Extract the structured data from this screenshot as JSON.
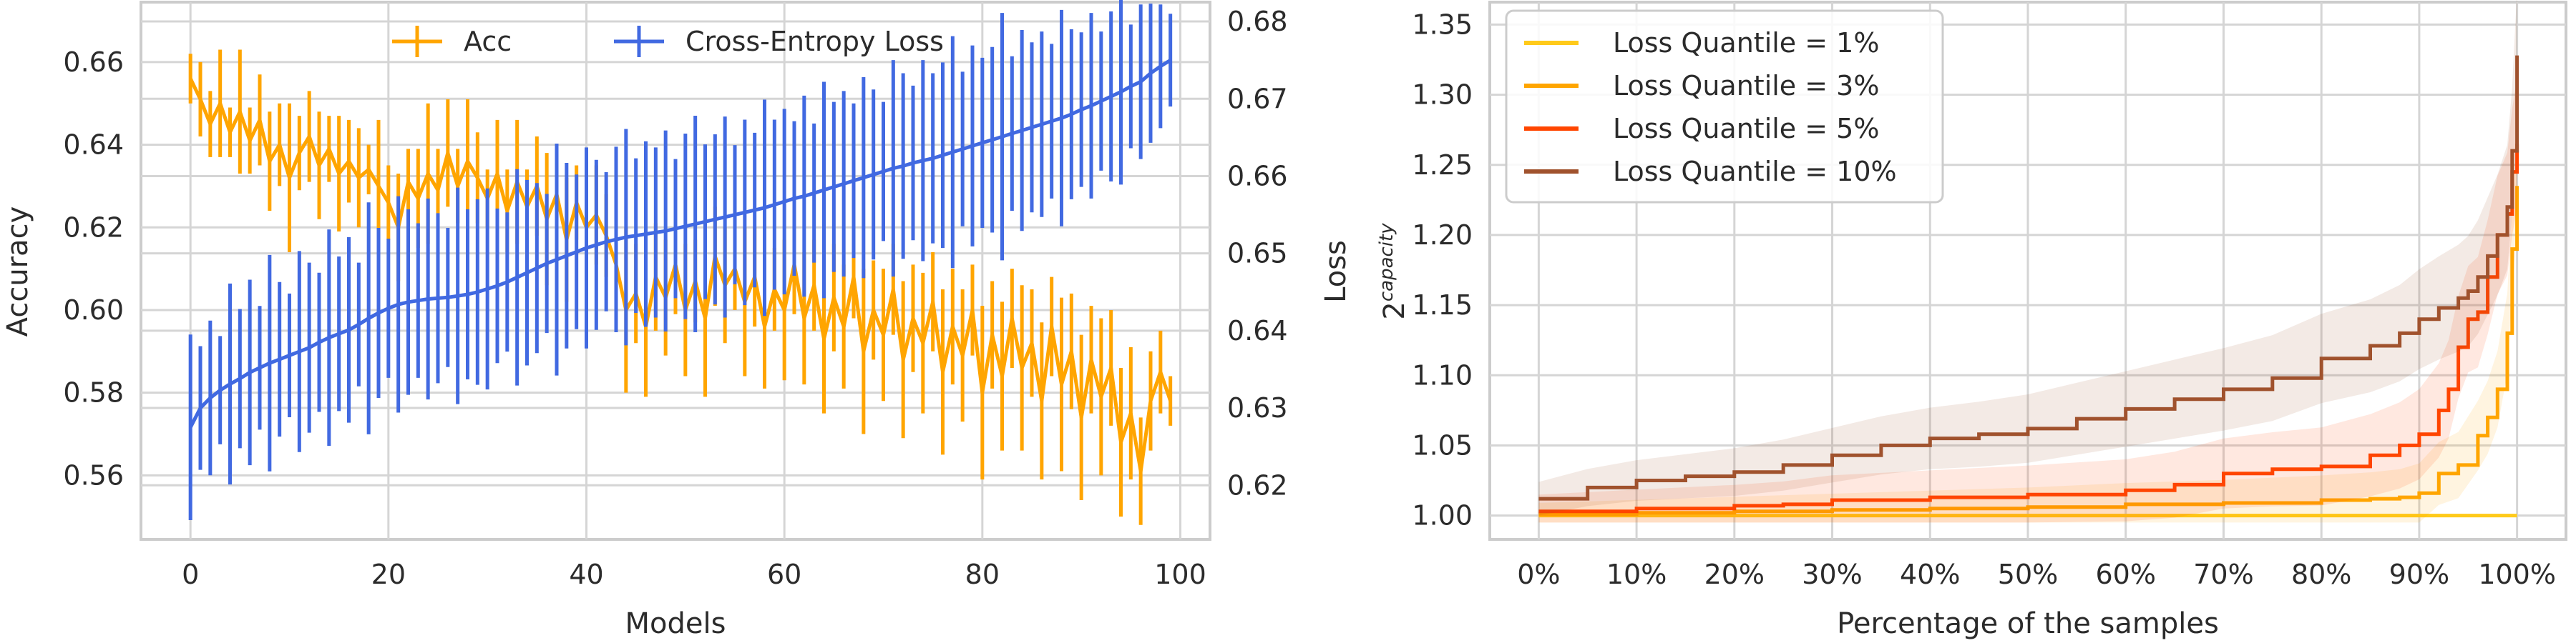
{
  "chart_data": [
    {
      "type": "line",
      "title": "",
      "xlabel": "Models",
      "ylabel": "Accuracy",
      "ylabel_right": "Loss",
      "xlim": [
        -5,
        103
      ],
      "ylim_left": [
        0.5445,
        0.6745
      ],
      "ylim_right": [
        0.613,
        0.6825
      ],
      "xticks": [
        0,
        20,
        40,
        60,
        80,
        100
      ],
      "yticks_left": [
        0.56,
        0.58,
        0.6,
        0.62,
        0.64,
        0.66
      ],
      "yticks_right": [
        0.62,
        0.63,
        0.64,
        0.65,
        0.66,
        0.67,
        0.68
      ],
      "ytick_labels_left": [
        "0.56",
        "0.58",
        "0.60",
        "0.62",
        "0.64",
        "0.66"
      ],
      "ytick_labels_right": [
        "0.62",
        "0.63",
        "0.64",
        "0.65",
        "0.66",
        "0.67",
        "0.68"
      ],
      "grid": true,
      "legend_position": "top-center",
      "series": [
        {
          "name": "Acc",
          "axis": "left",
          "color": "#FFA500",
          "x": [
            0,
            1,
            2,
            3,
            4,
            5,
            6,
            7,
            8,
            9,
            10,
            11,
            12,
            13,
            14,
            15,
            16,
            17,
            18,
            19,
            20,
            21,
            22,
            23,
            24,
            25,
            26,
            27,
            28,
            29,
            30,
            31,
            32,
            33,
            34,
            35,
            36,
            37,
            38,
            39,
            40,
            41,
            42,
            43,
            44,
            45,
            46,
            47,
            48,
            49,
            50,
            51,
            52,
            53,
            54,
            55,
            56,
            57,
            58,
            59,
            60,
            61,
            62,
            63,
            64,
            65,
            66,
            67,
            68,
            69,
            70,
            71,
            72,
            73,
            74,
            75,
            76,
            77,
            78,
            79,
            80,
            81,
            82,
            83,
            84,
            85,
            86,
            87,
            88,
            89,
            90,
            91,
            92,
            93,
            94,
            95,
            96,
            97,
            98,
            99
          ],
          "values": [
            0.656,
            0.651,
            0.645,
            0.65,
            0.643,
            0.648,
            0.641,
            0.646,
            0.636,
            0.64,
            0.632,
            0.638,
            0.642,
            0.635,
            0.639,
            0.633,
            0.636,
            0.632,
            0.634,
            0.63,
            0.626,
            0.62,
            0.631,
            0.627,
            0.633,
            0.629,
            0.638,
            0.63,
            0.636,
            0.632,
            0.627,
            0.633,
            0.624,
            0.631,
            0.625,
            0.63,
            0.622,
            0.628,
            0.617,
            0.626,
            0.62,
            0.623,
            0.618,
            0.611,
            0.6,
            0.604,
            0.596,
            0.608,
            0.603,
            0.611,
            0.6,
            0.607,
            0.598,
            0.613,
            0.606,
            0.61,
            0.602,
            0.608,
            0.596,
            0.605,
            0.6,
            0.611,
            0.598,
            0.606,
            0.593,
            0.603,
            0.596,
            0.608,
            0.59,
            0.6,
            0.594,
            0.605,
            0.588,
            0.598,
            0.592,
            0.602,
            0.585,
            0.596,
            0.589,
            0.6,
            0.58,
            0.594,
            0.584,
            0.598,
            0.586,
            0.592,
            0.578,
            0.596,
            0.582,
            0.59,
            0.574,
            0.588,
            0.579,
            0.586,
            0.568,
            0.575,
            0.561,
            0.578,
            0.585,
            0.578
          ],
          "errors": [
            0.006,
            0.009,
            0.008,
            0.013,
            0.006,
            0.015,
            0.008,
            0.011,
            0.012,
            0.01,
            0.018,
            0.009,
            0.011,
            0.013,
            0.008,
            0.014,
            0.01,
            0.012,
            0.006,
            0.016,
            0.009,
            0.013,
            0.008,
            0.012,
            0.017,
            0.01,
            0.013,
            0.009,
            0.015,
            0.011,
            0.007,
            0.013,
            0.01,
            0.015,
            0.009,
            0.012,
            0.016,
            0.01,
            0.015,
            0.009,
            0.008,
            0.012,
            0.01,
            0.015,
            0.02,
            0.012,
            0.017,
            0.013,
            0.014,
            0.012,
            0.016,
            0.01,
            0.019,
            0.012,
            0.014,
            0.01,
            0.018,
            0.012,
            0.015,
            0.01,
            0.017,
            0.012,
            0.016,
            0.011,
            0.018,
            0.013,
            0.015,
            0.01,
            0.02,
            0.012,
            0.016,
            0.011,
            0.019,
            0.013,
            0.017,
            0.012,
            0.02,
            0.014,
            0.016,
            0.011,
            0.021,
            0.013,
            0.018,
            0.012,
            0.02,
            0.013,
            0.019,
            0.012,
            0.021,
            0.014,
            0.02,
            0.013,
            0.019,
            0.014,
            0.018,
            0.016,
            0.013,
            0.012,
            0.01,
            0.006
          ]
        },
        {
          "name": "Cross-Entropy Loss",
          "axis": "right",
          "color": "#4169E1",
          "x": [
            0,
            1,
            2,
            3,
            4,
            5,
            6,
            7,
            8,
            9,
            10,
            11,
            12,
            13,
            14,
            15,
            16,
            17,
            18,
            19,
            20,
            21,
            22,
            23,
            24,
            25,
            26,
            27,
            28,
            29,
            30,
            31,
            32,
            33,
            34,
            35,
            36,
            37,
            38,
            39,
            40,
            41,
            42,
            43,
            44,
            45,
            46,
            47,
            48,
            49,
            50,
            51,
            52,
            53,
            54,
            55,
            56,
            57,
            58,
            59,
            60,
            61,
            62,
            63,
            64,
            65,
            66,
            67,
            68,
            69,
            70,
            71,
            72,
            73,
            74,
            75,
            76,
            77,
            78,
            79,
            80,
            81,
            82,
            83,
            84,
            85,
            86,
            87,
            88,
            89,
            90,
            91,
            92,
            93,
            94,
            95,
            96,
            97,
            98,
            99
          ],
          "values": [
            0.6275,
            0.63,
            0.6313,
            0.6323,
            0.6331,
            0.6338,
            0.6346,
            0.6352,
            0.6358,
            0.6363,
            0.6368,
            0.6373,
            0.6378,
            0.6385,
            0.6391,
            0.6396,
            0.6401,
            0.6408,
            0.6416,
            0.6423,
            0.6429,
            0.6434,
            0.6437,
            0.6439,
            0.6441,
            0.6442,
            0.6443,
            0.6445,
            0.6447,
            0.645,
            0.6454,
            0.6458,
            0.6463,
            0.6469,
            0.6475,
            0.6481,
            0.6487,
            0.6492,
            0.6497,
            0.6502,
            0.6507,
            0.6511,
            0.6515,
            0.6518,
            0.6521,
            0.6523,
            0.6525,
            0.6527,
            0.6529,
            0.6532,
            0.6535,
            0.6538,
            0.6541,
            0.6544,
            0.6547,
            0.655,
            0.6553,
            0.6556,
            0.6559,
            0.6563,
            0.6567,
            0.6571,
            0.6574,
            0.6578,
            0.6582,
            0.6586,
            0.659,
            0.6594,
            0.6598,
            0.6602,
            0.6606,
            0.661,
            0.6613,
            0.6617,
            0.662,
            0.6623,
            0.6627,
            0.6631,
            0.6635,
            0.6639,
            0.6643,
            0.6647,
            0.6651,
            0.6655,
            0.6659,
            0.6663,
            0.6667,
            0.6671,
            0.6675,
            0.668,
            0.6686,
            0.6691,
            0.6697,
            0.6703,
            0.6709,
            0.6716,
            0.6722,
            0.6733,
            0.6742,
            0.675
          ],
          "errors": [
            0.012,
            0.008,
            0.01,
            0.007,
            0.013,
            0.009,
            0.012,
            0.008,
            0.014,
            0.01,
            0.008,
            0.013,
            0.011,
            0.009,
            0.014,
            0.01,
            0.012,
            0.008,
            0.015,
            0.011,
            0.009,
            0.014,
            0.012,
            0.01,
            0.013,
            0.011,
            0.009,
            0.014,
            0.011,
            0.012,
            0.013,
            0.01,
            0.009,
            0.014,
            0.012,
            0.011,
            0.009,
            0.015,
            0.012,
            0.01,
            0.013,
            0.011,
            0.009,
            0.012,
            0.014,
            0.01,
            0.012,
            0.011,
            0.013,
            0.009,
            0.012,
            0.014,
            0.01,
            0.011,
            0.013,
            0.009,
            0.012,
            0.01,
            0.014,
            0.011,
            0.012,
            0.01,
            0.013,
            0.009,
            0.014,
            0.011,
            0.012,
            0.01,
            0.013,
            0.011,
            0.009,
            0.014,
            0.012,
            0.01,
            0.013,
            0.011,
            0.012,
            0.015,
            0.01,
            0.013,
            0.011,
            0.012,
            0.016,
            0.01,
            0.013,
            0.011,
            0.012,
            0.01,
            0.014,
            0.011,
            0.01,
            0.012,
            0.009,
            0.011,
            0.012,
            0.008,
            0.01,
            0.009,
            0.008,
            0.006
          ]
        }
      ]
    },
    {
      "type": "line",
      "title": "",
      "xlabel": "Percentage of the samples",
      "ylabel": "2",
      "ylabel_superscript": "capacity",
      "xlim": [
        -5,
        105
      ],
      "ylim": [
        0.983,
        1.366
      ],
      "xticks": [
        0,
        10,
        20,
        30,
        40,
        50,
        60,
        70,
        80,
        90,
        100
      ],
      "xtick_labels": [
        "0%",
        "10%",
        "20%",
        "30%",
        "40%",
        "50%",
        "60%",
        "70%",
        "80%",
        "90%",
        "100%"
      ],
      "yticks": [
        1.0,
        1.05,
        1.1,
        1.15,
        1.2,
        1.25,
        1.3,
        1.35
      ],
      "ytick_labels": [
        "1.00",
        "1.05",
        "1.10",
        "1.15",
        "1.20",
        "1.25",
        "1.30",
        "1.35"
      ],
      "grid": true,
      "legend_position": "top-left",
      "series": [
        {
          "name": "Loss Quantile = 1%",
          "color": "#FFCA1A",
          "x": [
            0,
            100
          ],
          "values": [
            1.0,
            1.0
          ],
          "band": 0.0005
        },
        {
          "name": "Loss Quantile = 3%",
          "color": "#FFA500",
          "x": [
            0,
            10,
            20,
            30,
            40,
            50,
            60,
            70,
            80,
            85,
            88,
            90,
            92,
            94,
            96,
            97,
            98,
            99,
            99.5,
            100
          ],
          "values": [
            1.001,
            1.002,
            1.003,
            1.004,
            1.005,
            1.006,
            1.008,
            1.009,
            1.011,
            1.012,
            1.013,
            1.016,
            1.03,
            1.036,
            1.057,
            1.07,
            1.09,
            1.13,
            1.19,
            1.235
          ],
          "band": 0.008
        },
        {
          "name": "Loss Quantile = 5%",
          "color": "#FF4500",
          "x": [
            0,
            10,
            20,
            25,
            30,
            40,
            50,
            60,
            65,
            70,
            75,
            80,
            85,
            88,
            90,
            92,
            93,
            94,
            95,
            96,
            97,
            98,
            99,
            99.5,
            100
          ],
          "values": [
            1.003,
            1.005,
            1.007,
            1.008,
            1.011,
            1.013,
            1.015,
            1.018,
            1.022,
            1.03,
            1.033,
            1.035,
            1.043,
            1.05,
            1.058,
            1.075,
            1.09,
            1.12,
            1.14,
            1.145,
            1.17,
            1.2,
            1.215,
            1.245,
            1.265
          ],
          "band": 0.012
        },
        {
          "name": "Loss Quantile = 10%",
          "color": "#A0522D",
          "x": [
            0,
            5,
            10,
            15,
            20,
            25,
            30,
            35,
            40,
            45,
            50,
            55,
            60,
            65,
            70,
            75,
            80,
            85,
            88,
            90,
            92,
            94,
            95,
            96,
            97,
            98,
            99,
            99.5,
            100
          ],
          "values": [
            1.012,
            1.02,
            1.025,
            1.028,
            1.031,
            1.036,
            1.043,
            1.05,
            1.055,
            1.058,
            1.062,
            1.069,
            1.076,
            1.083,
            1.09,
            1.098,
            1.112,
            1.121,
            1.13,
            1.14,
            1.148,
            1.155,
            1.16,
            1.17,
            1.185,
            1.2,
            1.22,
            1.26,
            1.328
          ],
          "band": 0.012
        }
      ]
    }
  ]
}
